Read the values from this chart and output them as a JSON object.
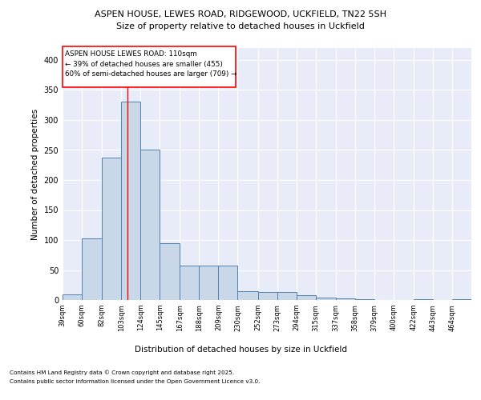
{
  "title1": "ASPEN HOUSE, LEWES ROAD, RIDGEWOOD, UCKFIELD, TN22 5SH",
  "title2": "Size of property relative to detached houses in Uckfield",
  "xlabel": "Distribution of detached houses by size in Uckfield",
  "ylabel": "Number of detached properties",
  "bin_labels": [
    "39sqm",
    "60sqm",
    "82sqm",
    "103sqm",
    "124sqm",
    "145sqm",
    "167sqm",
    "188sqm",
    "209sqm",
    "230sqm",
    "252sqm",
    "273sqm",
    "294sqm",
    "315sqm",
    "337sqm",
    "358sqm",
    "379sqm",
    "400sqm",
    "422sqm",
    "443sqm",
    "464sqm"
  ],
  "bar_heights": [
    10,
    103,
    237,
    330,
    250,
    95,
    57,
    57,
    57,
    15,
    14,
    14,
    8,
    4,
    3,
    1,
    0,
    0,
    1,
    0,
    2
  ],
  "bar_color": "#c8d8e8",
  "bar_edge_color": "#5080b0",
  "red_line_x": 110,
  "bin_edges": [
    39,
    60,
    82,
    103,
    124,
    145,
    167,
    188,
    209,
    230,
    252,
    273,
    294,
    315,
    337,
    358,
    379,
    400,
    422,
    443,
    464,
    485
  ],
  "annotation_title": "ASPEN HOUSE LEWES ROAD: 110sqm",
  "annotation_line1": "← 39% of detached houses are smaller (455)",
  "annotation_line2": "60% of semi-detached houses are larger (709) →",
  "ylim": [
    0,
    420
  ],
  "yticks": [
    0,
    50,
    100,
    150,
    200,
    250,
    300,
    350,
    400
  ],
  "background_color": "#e8ecf8",
  "grid_color": "#ffffff",
  "footer1": "Contains HM Land Registry data © Crown copyright and database right 2025.",
  "footer2": "Contains public sector information licensed under the Open Government Licence v3.0."
}
